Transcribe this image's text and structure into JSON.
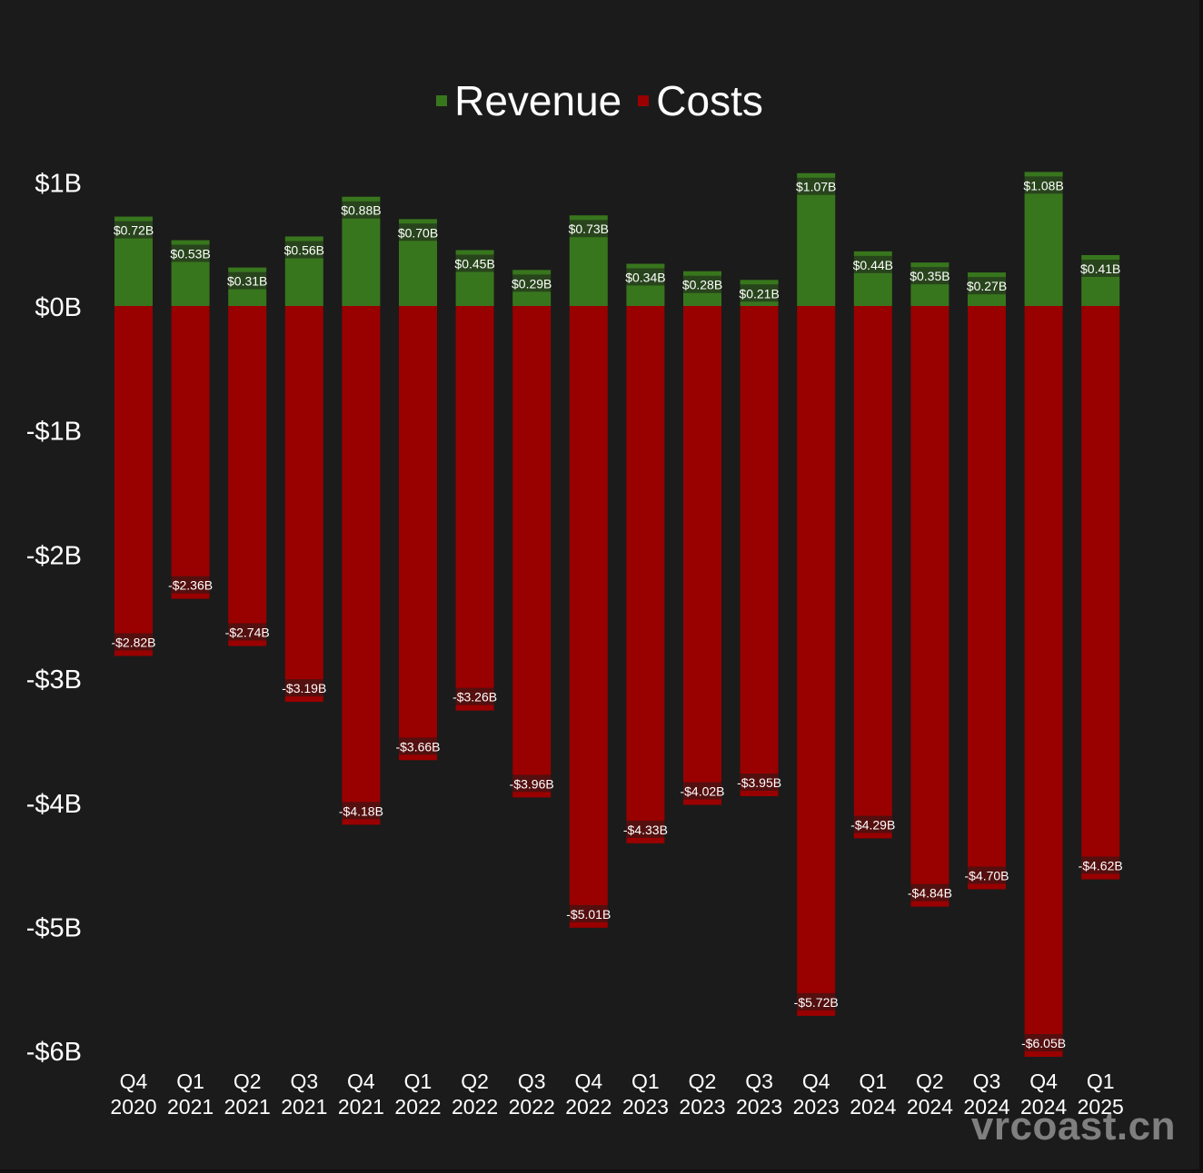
{
  "colors": {
    "background": "#1b1b1b",
    "revenue": "#38761d",
    "costs": "#990000",
    "text": "#ffffff"
  },
  "legend": {
    "revenue_label": "Revenue",
    "costs_label": "Costs"
  },
  "watermark": "vrcoast.cn",
  "chart_data": {
    "type": "bar",
    "title": "",
    "xlabel": "",
    "ylabel": "",
    "ylim": [
      -6,
      1
    ],
    "y_ticks": [
      1,
      0,
      -1,
      -2,
      -3,
      -4,
      -5,
      -6
    ],
    "y_tick_labels": [
      "$1B",
      "$0B",
      "-$1B",
      "-$2B",
      "-$3B",
      "-$4B",
      "-$5B",
      "-$6B"
    ],
    "legend_position": "top-center",
    "categories": [
      [
        "Q4",
        "2020"
      ],
      [
        "Q1",
        "2021"
      ],
      [
        "Q2",
        "2021"
      ],
      [
        "Q3",
        "2021"
      ],
      [
        "Q4",
        "2021"
      ],
      [
        "Q1",
        "2022"
      ],
      [
        "Q2",
        "2022"
      ],
      [
        "Q3",
        "2022"
      ],
      [
        "Q4",
        "2022"
      ],
      [
        "Q1",
        "2023"
      ],
      [
        "Q2",
        "2023"
      ],
      [
        "Q3",
        "2023"
      ],
      [
        "Q4",
        "2023"
      ],
      [
        "Q1",
        "2024"
      ],
      [
        "Q2",
        "2024"
      ],
      [
        "Q3",
        "2024"
      ],
      [
        "Q4",
        "2024"
      ],
      [
        "Q1",
        "2025"
      ]
    ],
    "series": [
      {
        "name": "Revenue",
        "color": "#38761d",
        "values": [
          0.72,
          0.53,
          0.31,
          0.56,
          0.88,
          0.7,
          0.45,
          0.29,
          0.73,
          0.34,
          0.28,
          0.21,
          1.07,
          0.44,
          0.35,
          0.27,
          1.08,
          0.41
        ],
        "labels": [
          "$0.72B",
          "$0.53B",
          "$0.31B",
          "$0.56B",
          "$0.88B",
          "$0.70B",
          "$0.45B",
          "$0.29B",
          "$0.73B",
          "$0.34B",
          "$0.28B",
          "$0.21B",
          "$1.07B",
          "$0.44B",
          "$0.35B",
          "$0.27B",
          "$1.08B",
          "$0.41B"
        ]
      },
      {
        "name": "Costs",
        "color": "#990000",
        "values": [
          -2.82,
          -2.36,
          -2.74,
          -3.19,
          -4.18,
          -3.66,
          -3.26,
          -3.96,
          -5.01,
          -4.33,
          -4.02,
          -3.95,
          -5.72,
          -4.29,
          -4.84,
          -4.7,
          -6.05,
          -4.62
        ],
        "labels": [
          "-$2.82B",
          "-$2.36B",
          "-$2.74B",
          "-$3.19B",
          "-$4.18B",
          "-$3.66B",
          "-$3.26B",
          "-$3.96B",
          "-$5.01B",
          "-$4.33B",
          "-$4.02B",
          "-$3.95B",
          "-$5.72B",
          "-$4.29B",
          "-$4.84B",
          "-$4.70B",
          "-$6.05B",
          "-$4.62B"
        ]
      }
    ]
  }
}
